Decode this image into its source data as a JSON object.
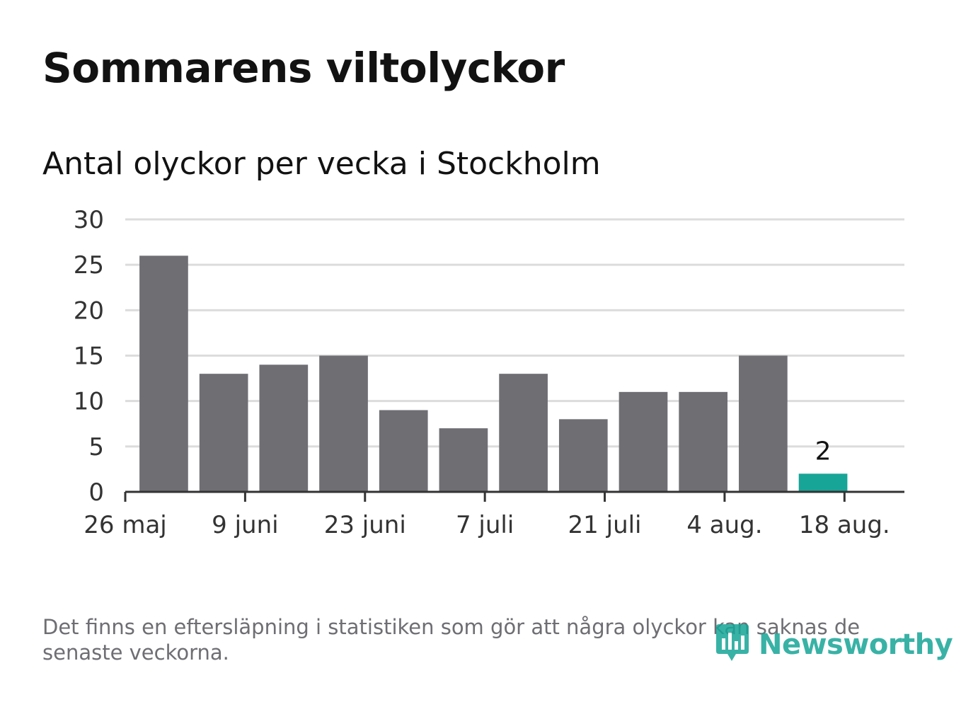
{
  "title": "Sommarens viltolyckor",
  "subtitle": "Antal olyckor per vecka i Stockholm",
  "footnote": "Det finns en eftersläpning i statistiken som gör att några olyckor kan saknas de senaste veckorna.",
  "logo": {
    "text": "Newsworthy",
    "icon": "newsworthy-logo-icon"
  },
  "colors": {
    "bar": "#6f6e73",
    "highlight": "#17a597",
    "grid": "#dcdcdc",
    "axis": "#333333"
  },
  "chart_data": {
    "type": "bar",
    "title": "Sommarens viltolyckor",
    "subtitle": "Antal olyckor per vecka i Stockholm",
    "xlabel": "",
    "ylabel": "",
    "ylim": [
      0,
      30
    ],
    "yticks": [
      0,
      5,
      10,
      15,
      20,
      25,
      30
    ],
    "categories": [
      "2019-05-27",
      "2019-06-03",
      "2019-06-10",
      "2019-06-17",
      "2019-06-24",
      "2019-07-01",
      "2019-07-08",
      "2019-07-15",
      "2019-07-22",
      "2019-07-29",
      "2019-08-05",
      "2019-08-12"
    ],
    "values": [
      26,
      13,
      14,
      15,
      9,
      7,
      13,
      8,
      11,
      11,
      15,
      2
    ],
    "highlight_index": 11,
    "data_labels": [
      {
        "index": 11,
        "text": "2"
      }
    ],
    "xtick_labels": [
      "26 maj",
      "9 juni",
      "23 juni",
      "7 juli",
      "21 juli",
      "4 aug.",
      "18 aug."
    ],
    "grid": true,
    "legend": "none"
  }
}
